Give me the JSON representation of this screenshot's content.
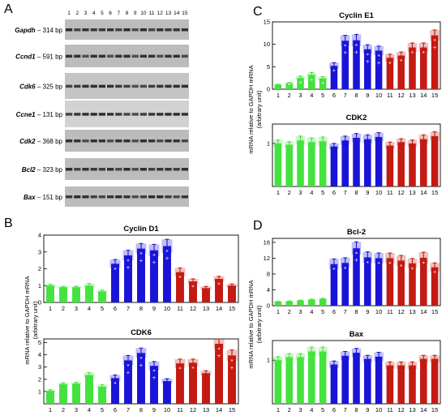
{
  "colors": {
    "green": "#44e23e",
    "blue": "#1a14d8",
    "red": "#c41a12"
  },
  "panel_labels": [
    "A",
    "B",
    "C",
    "D"
  ],
  "gel": {
    "lanes": [
      "1",
      "2",
      "3",
      "4",
      "5",
      "6",
      "7",
      "8",
      "9",
      "10",
      "11",
      "12",
      "13",
      "14",
      "15"
    ],
    "rows": [
      {
        "gene": "Gapdh",
        "size": "– 314 bp"
      },
      {
        "gene": "Ccnd1",
        "size": "– 591 bp"
      },
      {
        "gene": "Cdk6",
        "size": "– 325 bp"
      },
      {
        "gene": "Ccne1",
        "size": "– 131 bp"
      },
      {
        "gene": "Cdk2",
        "size": "– 368 bp"
      },
      {
        "gene": "Bcl2",
        "size": "– 323 bp"
      },
      {
        "gene": "Bax",
        "size": "– 151 bp"
      }
    ]
  },
  "y_axis_label_1": "mRNA relative to GAPDH mRNA",
  "y_axis_label_2": "(arbitrary unit)",
  "chart_data": [
    {
      "type": "bar",
      "title": "Cyclin D1",
      "categories": [
        "1",
        "2",
        "3",
        "4",
        "5",
        "6",
        "7",
        "8",
        "9",
        "10",
        "11",
        "12",
        "13",
        "14",
        "15"
      ],
      "values": [
        1.0,
        0.9,
        0.9,
        1.0,
        0.65,
        2.3,
        2.8,
        3.2,
        3.1,
        3.35,
        1.8,
        1.25,
        0.85,
        1.4,
        1.0
      ],
      "errors": [
        0.08,
        0.05,
        0.06,
        0.12,
        0.08,
        0.25,
        0.3,
        0.3,
        0.35,
        0.4,
        0.25,
        0.15,
        0.1,
        0.15,
        0.1
      ],
      "marks": [
        "",
        "",
        "",
        "",
        "",
        "*",
        "* +",
        "* +",
        "* +",
        "* +",
        "*",
        "*",
        "",
        "*",
        ""
      ],
      "ylim": [
        0,
        4
      ],
      "yticks": [
        0,
        1,
        2,
        3,
        4
      ]
    },
    {
      "type": "bar",
      "title": "CDK6",
      "categories": [
        "1",
        "2",
        "3",
        "4",
        "5",
        "6",
        "7",
        "8",
        "9",
        "10",
        "11",
        "12",
        "13",
        "14",
        "15"
      ],
      "values": [
        1.05,
        1.6,
        1.65,
        2.35,
        1.4,
        2.1,
        3.55,
        4.15,
        3.1,
        1.85,
        3.3,
        3.35,
        2.5,
        4.9,
        3.95
      ],
      "errors": [
        0.1,
        0.12,
        0.1,
        0.2,
        0.15,
        0.25,
        0.4,
        0.4,
        0.35,
        0.2,
        0.35,
        0.3,
        0.2,
        0.4,
        0.45
      ],
      "marks": [
        "",
        "",
        "",
        "",
        "",
        "*",
        "* +",
        "* +",
        "* +",
        "",
        "*",
        "*",
        "",
        "* +",
        "* +"
      ],
      "ylim": [
        0,
        5.3
      ],
      "yticks": [
        1,
        2,
        3,
        4,
        5
      ]
    },
    {
      "type": "bar",
      "title": "Cyclin E1",
      "categories": [
        "1",
        "2",
        "3",
        "4",
        "5",
        "6",
        "7",
        "8",
        "9",
        "10",
        "11",
        "12",
        "13",
        "14",
        "15"
      ],
      "values": [
        1.0,
        1.3,
        2.5,
        3.2,
        2.4,
        5.2,
        10.8,
        10.9,
        8.9,
        8.6,
        7.0,
        7.5,
        9.3,
        9.3,
        12.0
      ],
      "errors": [
        0.1,
        0.2,
        0.4,
        0.5,
        0.4,
        0.7,
        1.2,
        1.3,
        1.0,
        1.0,
        0.8,
        0.8,
        1.0,
        1.0,
        1.2
      ],
      "marks": [
        "",
        "*",
        "*",
        "*",
        "*",
        "*",
        "* +",
        "* +",
        "* +",
        "* +",
        "*",
        "*",
        "*",
        "*",
        "* +"
      ],
      "ylim": [
        0,
        15
      ],
      "yticks": [
        0,
        5,
        10,
        15
      ]
    },
    {
      "type": "bar",
      "title": "CDK2",
      "categories": [
        "1",
        "2",
        "3",
        "4",
        "5",
        "6",
        "7",
        "8",
        "9",
        "10",
        "11",
        "12",
        "13",
        "14",
        "15"
      ],
      "values": [
        1.0,
        0.97,
        1.07,
        1.03,
        1.05,
        0.93,
        1.07,
        1.13,
        1.1,
        1.15,
        0.95,
        1.03,
        1.0,
        1.1,
        1.17
      ],
      "errors": [
        0.08,
        0.07,
        0.1,
        0.1,
        0.1,
        0.07,
        0.1,
        0.1,
        0.1,
        0.1,
        0.08,
        0.08,
        0.08,
        0.1,
        0.1
      ],
      "marks": [
        "",
        "",
        "",
        "",
        "",
        "",
        "",
        "",
        "",
        "",
        "",
        "",
        "",
        "",
        ""
      ],
      "ylim": [
        0,
        1.45
      ],
      "yticks": [
        1
      ]
    },
    {
      "type": "bar",
      "title": "Bcl-2",
      "categories": [
        "1",
        "2",
        "3",
        "4",
        "5",
        "6",
        "7",
        "8",
        "9",
        "10",
        "11",
        "12",
        "13",
        "14",
        "15"
      ],
      "values": [
        1.0,
        1.1,
        1.3,
        1.5,
        1.7,
        10.5,
        10.8,
        14.5,
        12.2,
        12.0,
        12.0,
        11.4,
        10.7,
        12.1,
        9.7
      ],
      "errors": [
        0.1,
        0.1,
        0.1,
        0.15,
        0.15,
        1.3,
        1.3,
        1.6,
        1.4,
        1.3,
        1.3,
        1.3,
        1.2,
        1.4,
        1.1
      ],
      "marks": [
        "",
        "",
        "",
        "",
        "",
        "*",
        "*",
        "* +",
        "*",
        "*",
        "*",
        "*",
        "*",
        "*",
        "*"
      ],
      "ylim": [
        0,
        17
      ],
      "yticks": [
        0,
        4,
        8,
        12,
        16
      ]
    },
    {
      "type": "bar",
      "title": "Bax",
      "categories": [
        "1",
        "2",
        "3",
        "4",
        "5",
        "6",
        "7",
        "8",
        "9",
        "10",
        "11",
        "12",
        "13",
        "14",
        "15"
      ],
      "values": [
        1.0,
        1.07,
        1.07,
        1.2,
        1.2,
        0.9,
        1.1,
        1.17,
        1.03,
        1.08,
        0.88,
        0.88,
        0.88,
        1.03,
        1.03
      ],
      "errors": [
        0.08,
        0.08,
        0.08,
        0.1,
        0.1,
        0.08,
        0.1,
        0.1,
        0.08,
        0.1,
        0.08,
        0.08,
        0.08,
        0.08,
        0.08
      ],
      "marks": [
        "",
        "",
        "",
        "",
        "",
        "",
        "",
        "",
        "",
        "",
        "",
        "",
        "",
        "",
        ""
      ],
      "ylim": [
        0,
        1.45
      ],
      "yticks": [
        1
      ]
    }
  ]
}
